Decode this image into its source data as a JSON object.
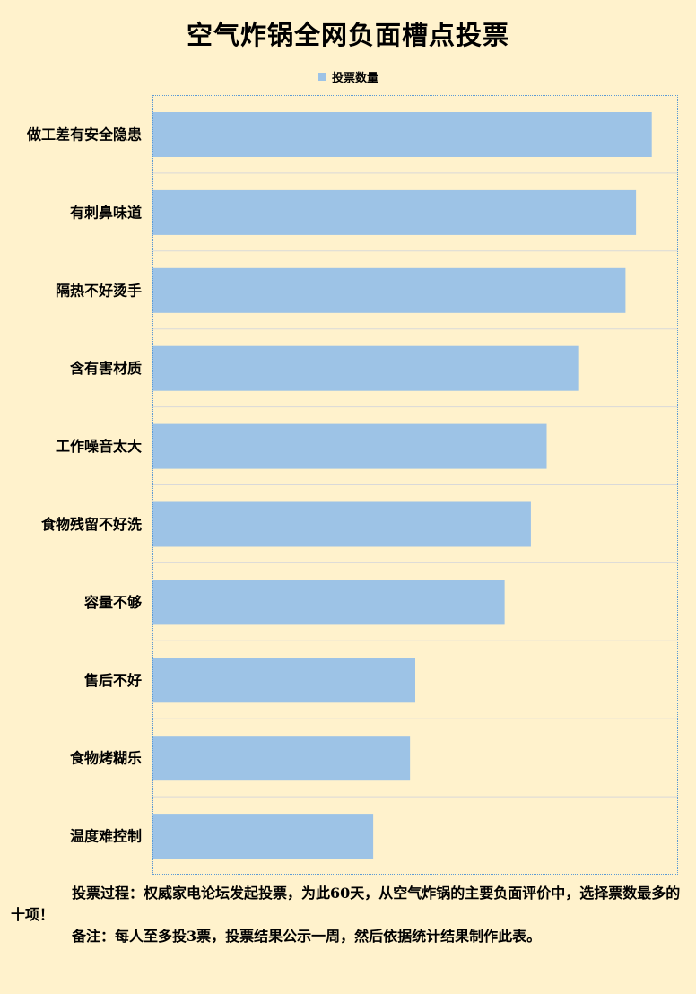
{
  "chart_data": {
    "type": "bar",
    "orientation": "horizontal",
    "title": "空气炸锅全网负面槽点投票",
    "legend": "top",
    "colors": {
      "background": "#FFF2CC",
      "bar": "#9DC3E6",
      "grid": "#D9D9D9"
    },
    "categories": [
      "做工差有安全隐患",
      "有刺鼻味道",
      "隔热不好烫手",
      "含有害材质",
      "工作噪音太大",
      "食物残留不好洗",
      "容量不够",
      "售后不好",
      "食物烤糊乐",
      "温度难控制"
    ],
    "series": [
      {
        "name": "投票数量",
        "values": [
          95,
          92,
          90,
          81,
          75,
          72,
          67,
          50,
          49,
          42
        ]
      }
    ],
    "xlim": [
      0,
      100
    ],
    "value_axis_shown": false,
    "grid": true
  },
  "notes": {
    "line1": "投票过程：权威家电论坛发起投票，为此60天，从空气炸锅的主要负面评价中，选择票数最多的十项！",
    "line2": "备注：每人至多投3票，投票结果公示一周，然后依据统计结果制作此表。"
  }
}
